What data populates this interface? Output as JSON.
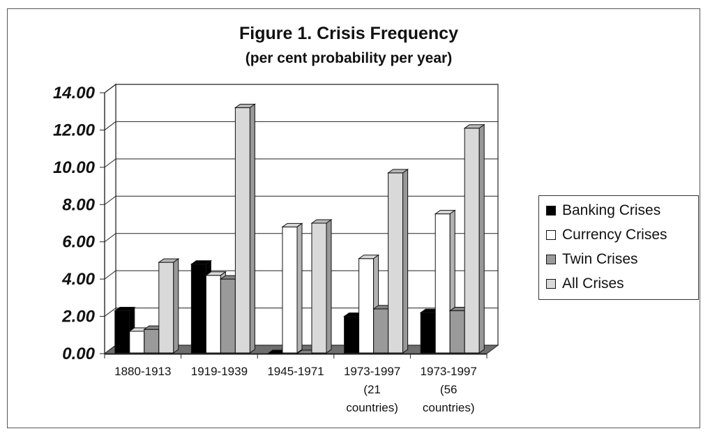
{
  "chart_data": {
    "type": "bar",
    "title": "Figure 1. Crisis Frequency",
    "subtitle": "(per cent probability per year)",
    "categories": [
      [
        "1880-1913"
      ],
      [
        "1919-1939"
      ],
      [
        "1945-1971"
      ],
      [
        "1973-1997",
        "(21",
        "countries)"
      ],
      [
        "1973-1997",
        "(56",
        "countries)"
      ]
    ],
    "series": [
      {
        "name": "Banking Crises",
        "color": "#000000",
        "values": [
          2.3,
          4.8,
          0.0,
          2.0,
          2.2
        ]
      },
      {
        "name": "Currency Crises",
        "color": "#ffffff",
        "values": [
          1.2,
          4.2,
          6.8,
          5.1,
          7.5
        ]
      },
      {
        "name": "Twin Crises",
        "color": "#9a9a9a",
        "values": [
          1.3,
          4.0,
          0.0,
          2.4,
          2.3
        ]
      },
      {
        "name": "All Crises",
        "color": "#d9d9d9",
        "values": [
          4.9,
          13.2,
          7.0,
          9.7,
          12.1
        ]
      }
    ],
    "yticks": [
      "0.00",
      "2.00",
      "4.00",
      "6.00",
      "8.00",
      "10.00",
      "12.00",
      "14.00"
    ],
    "ylim": [
      0,
      14
    ],
    "grid": true,
    "legend_position": "right"
  }
}
